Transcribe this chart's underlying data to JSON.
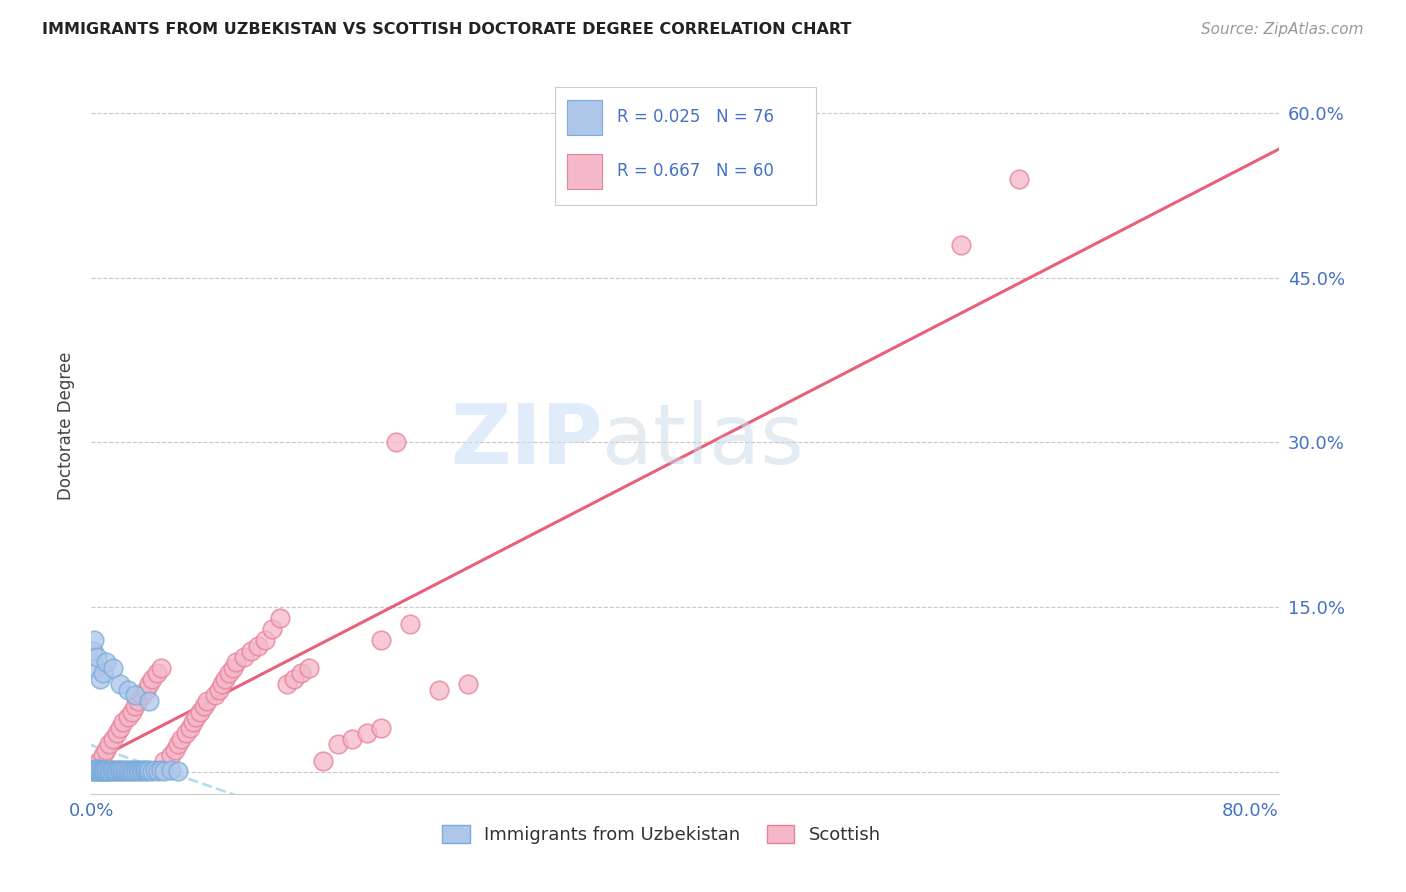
{
  "title": "IMMIGRANTS FROM UZBEKISTAN VS SCOTTISH DOCTORATE DEGREE CORRELATION CHART",
  "source": "Source: ZipAtlas.com",
  "ylabel": "Doctorate Degree",
  "legend_blue_R": "R = 0.025",
  "legend_blue_N": "N = 76",
  "legend_pink_R": "R = 0.667",
  "legend_pink_N": "N = 60",
  "blue_fill_color": "#aec6e8",
  "blue_edge_color": "#7aabdc",
  "pink_fill_color": "#f4b8c8",
  "pink_edge_color": "#e8809a",
  "pink_line_color": "#e8607a",
  "blue_line_color": "#a8d8f0",
  "watermark_zip_color": "#cce0f5",
  "watermark_atlas_color": "#c8d8e8",
  "blue_scatter_x": [
    0.001,
    0.001,
    0.002,
    0.002,
    0.002,
    0.003,
    0.003,
    0.003,
    0.004,
    0.004,
    0.004,
    0.005,
    0.005,
    0.005,
    0.006,
    0.006,
    0.007,
    0.007,
    0.008,
    0.008,
    0.009,
    0.009,
    0.01,
    0.01,
    0.011,
    0.011,
    0.012,
    0.013,
    0.014,
    0.015,
    0.015,
    0.016,
    0.017,
    0.018,
    0.019,
    0.02,
    0.02,
    0.021,
    0.022,
    0.023,
    0.024,
    0.025,
    0.026,
    0.027,
    0.028,
    0.029,
    0.03,
    0.031,
    0.032,
    0.033,
    0.034,
    0.035,
    0.036,
    0.037,
    0.038,
    0.039,
    0.04,
    0.042,
    0.044,
    0.046,
    0.048,
    0.05,
    0.055,
    0.06,
    0.001,
    0.002,
    0.003,
    0.004,
    0.006,
    0.008,
    0.01,
    0.015,
    0.02,
    0.025,
    0.03,
    0.04
  ],
  "blue_scatter_y": [
    0.001,
    0.002,
    0.001,
    0.002,
    0.003,
    0.001,
    0.002,
    0.003,
    0.001,
    0.002,
    0.003,
    0.001,
    0.002,
    0.003,
    0.001,
    0.002,
    0.001,
    0.002,
    0.001,
    0.002,
    0.001,
    0.002,
    0.001,
    0.002,
    0.001,
    0.002,
    0.001,
    0.001,
    0.002,
    0.001,
    0.002,
    0.001,
    0.002,
    0.001,
    0.002,
    0.001,
    0.002,
    0.001,
    0.002,
    0.001,
    0.002,
    0.001,
    0.002,
    0.001,
    0.002,
    0.001,
    0.002,
    0.001,
    0.002,
    0.001,
    0.002,
    0.001,
    0.002,
    0.001,
    0.002,
    0.001,
    0.002,
    0.001,
    0.002,
    0.001,
    0.002,
    0.001,
    0.002,
    0.001,
    0.11,
    0.12,
    0.095,
    0.105,
    0.085,
    0.09,
    0.1,
    0.095,
    0.08,
    0.075,
    0.07,
    0.065
  ],
  "pink_scatter_x": [
    0.002,
    0.005,
    0.008,
    0.01,
    0.012,
    0.015,
    0.018,
    0.02,
    0.022,
    0.025,
    0.028,
    0.03,
    0.032,
    0.035,
    0.038,
    0.04,
    0.042,
    0.045,
    0.048,
    0.05,
    0.055,
    0.058,
    0.06,
    0.062,
    0.065,
    0.068,
    0.07,
    0.072,
    0.075,
    0.078,
    0.08,
    0.085,
    0.088,
    0.09,
    0.092,
    0.095,
    0.098,
    0.1,
    0.105,
    0.11,
    0.115,
    0.12,
    0.125,
    0.13,
    0.135,
    0.14,
    0.145,
    0.15,
    0.16,
    0.17,
    0.18,
    0.19,
    0.2,
    0.21,
    0.22,
    0.24,
    0.26,
    0.6,
    0.64,
    0.2
  ],
  "pink_scatter_y": [
    0.005,
    0.01,
    0.015,
    0.02,
    0.025,
    0.03,
    0.035,
    0.04,
    0.045,
    0.05,
    0.055,
    0.06,
    0.065,
    0.07,
    0.075,
    0.08,
    0.085,
    0.09,
    0.095,
    0.01,
    0.015,
    0.02,
    0.025,
    0.03,
    0.035,
    0.04,
    0.045,
    0.05,
    0.055,
    0.06,
    0.065,
    0.07,
    0.075,
    0.08,
    0.085,
    0.09,
    0.095,
    0.1,
    0.105,
    0.11,
    0.115,
    0.12,
    0.13,
    0.14,
    0.08,
    0.085,
    0.09,
    0.095,
    0.01,
    0.025,
    0.03,
    0.035,
    0.04,
    0.3,
    0.135,
    0.075,
    0.08,
    0.48,
    0.54,
    0.12
  ],
  "xlim": [
    0.0,
    0.82
  ],
  "ylim": [
    -0.02,
    0.65
  ],
  "x_tick_positions": [
    0.0,
    0.1,
    0.2,
    0.3,
    0.4,
    0.5,
    0.6,
    0.7,
    0.8
  ],
  "x_tick_labels": [
    "0.0%",
    "",
    "",
    "",
    "",
    "",
    "",
    "",
    "80.0%"
  ],
  "y_tick_positions": [
    0.0,
    0.15,
    0.3,
    0.45,
    0.6
  ],
  "y_tick_labels_right": [
    "",
    "15.0%",
    "30.0%",
    "45.0%",
    "60.0%"
  ],
  "background_color": "#ffffff"
}
